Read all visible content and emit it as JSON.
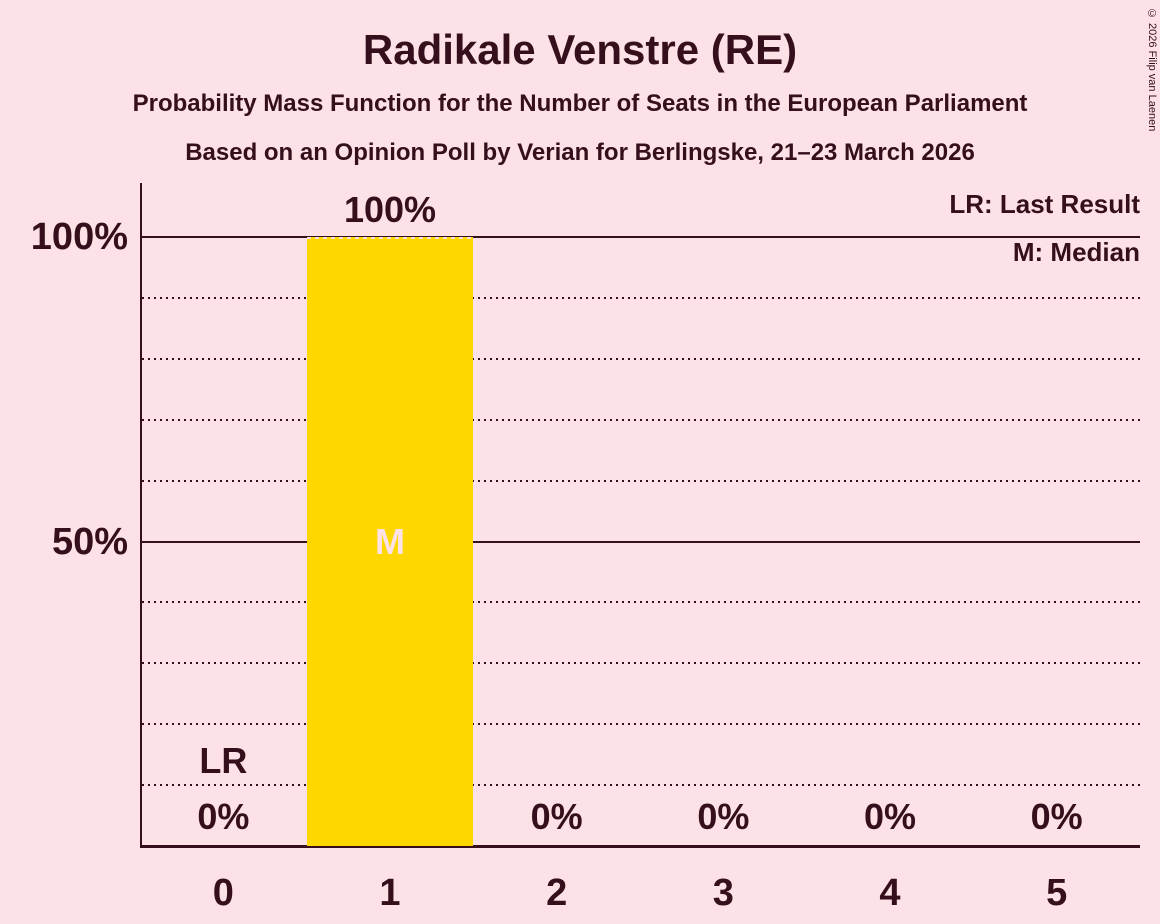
{
  "header": {
    "title": "Radikale Venstre (RE)",
    "subtitle1": "Probability Mass Function for the Number of Seats in the European Parliament",
    "subtitle2": "Based on an Opinion Poll by Verian for Berlingske, 21–23 March 2026"
  },
  "copyright": "© 2026 Filip van Laenen",
  "legend": {
    "lr": "LR: Last Result",
    "m": "M: Median"
  },
  "chart_data": {
    "type": "bar",
    "title": "Radikale Venstre (RE)",
    "categories": [
      "0",
      "1",
      "2",
      "3",
      "4",
      "5"
    ],
    "values": [
      0,
      100,
      0,
      0,
      0,
      0
    ],
    "value_labels": [
      "0%",
      "100%",
      "0%",
      "0%",
      "0%",
      "0%"
    ],
    "ylim": [
      0,
      100
    ],
    "yticks": [
      {
        "value": 100,
        "label": "100%"
      },
      {
        "value": 50,
        "label": "50%"
      }
    ],
    "dotted_gridlines": [
      90,
      80,
      70,
      60,
      40,
      30,
      20,
      10
    ],
    "annotations": [
      {
        "category_index": 0,
        "text": "LR",
        "meaning": "Last Result",
        "y_percent": 14,
        "color": "#350f1b"
      },
      {
        "category_index": 1,
        "text": "M",
        "meaning": "Median",
        "y_percent": 50,
        "color": "#fce1e6"
      }
    ],
    "legend_entries": [
      "LR: Last Result",
      "M: Median"
    ],
    "legend_position": "top-right",
    "grid": true,
    "colors": {
      "bar": "#ffd700",
      "background": "#fce1e6",
      "text": "#350f1b",
      "median_label": "#fce1e6"
    }
  }
}
